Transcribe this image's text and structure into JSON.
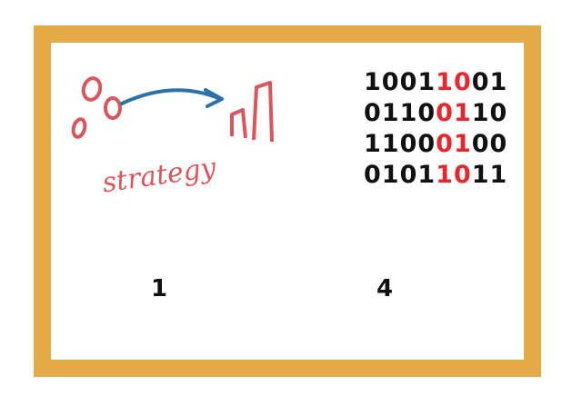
{
  "illustration": {
    "word": "strategy",
    "stroke_color": "#d9565d",
    "arrow_color": "#2b72a8"
  },
  "binary_grid": {
    "rows": [
      [
        {
          "t": "1001",
          "hl": false
        },
        {
          "t": "10",
          "hl": true
        },
        {
          "t": "01",
          "hl": false
        }
      ],
      [
        {
          "t": "0110",
          "hl": false
        },
        {
          "t": "01",
          "hl": true
        },
        {
          "t": "10",
          "hl": false
        }
      ],
      [
        {
          "t": "1100",
          "hl": false
        },
        {
          "t": "01",
          "hl": true
        },
        {
          "t": "00",
          "hl": false
        }
      ],
      [
        {
          "t": "0101",
          "hl": false
        },
        {
          "t": "10",
          "hl": true
        },
        {
          "t": "11",
          "hl": false
        }
      ]
    ],
    "text_color": "#111111",
    "highlight_color": "#e8262c"
  },
  "labels": {
    "first": "1",
    "second": "4"
  },
  "frame": {
    "border_color": "#e3aa46"
  }
}
